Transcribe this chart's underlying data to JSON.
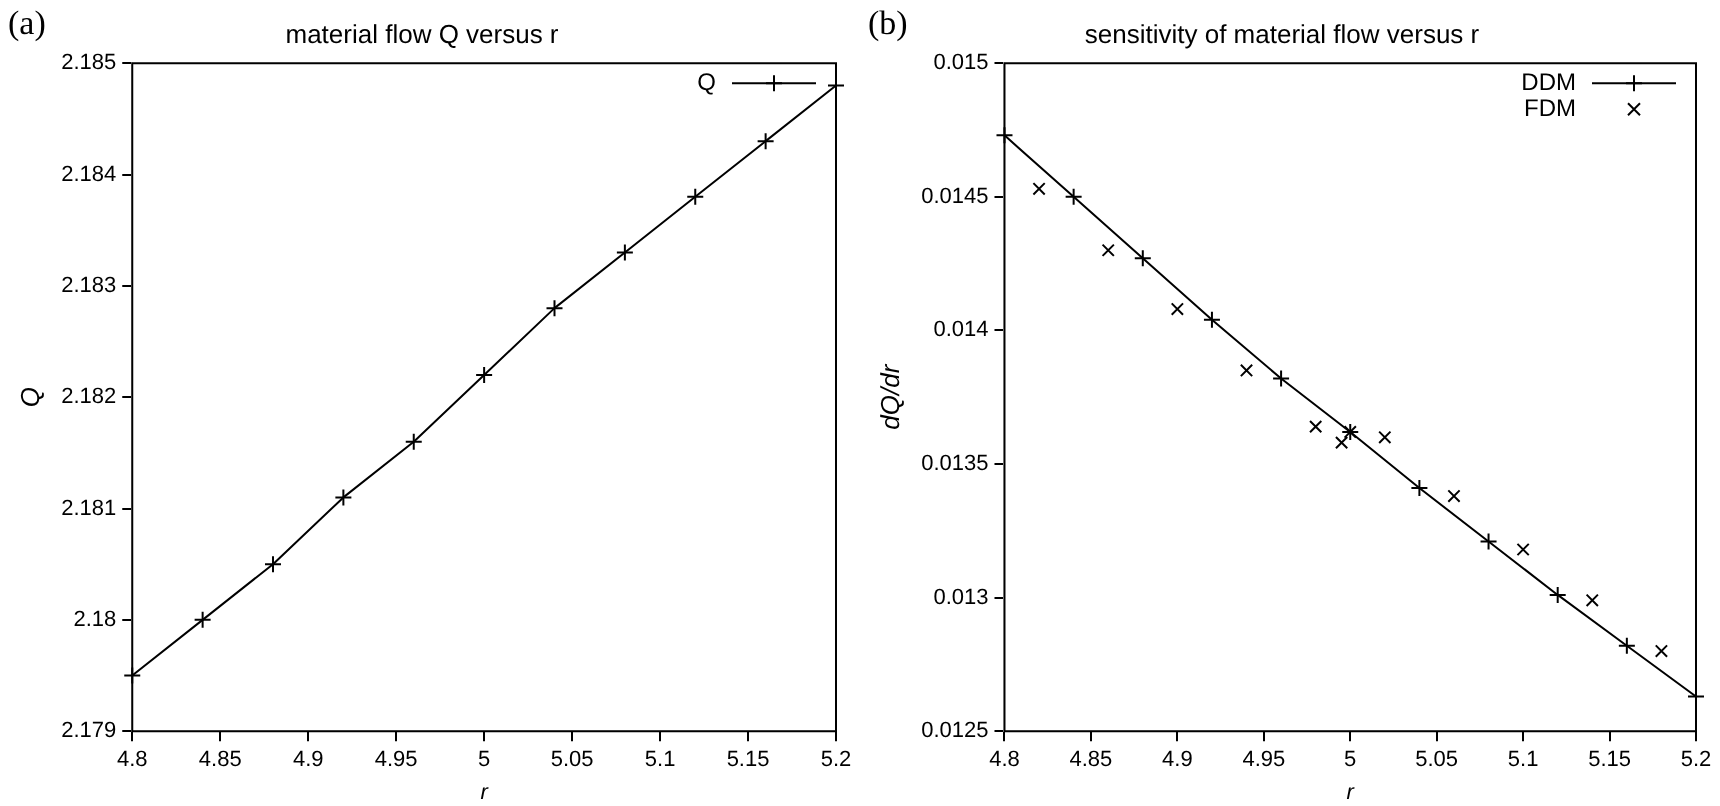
{
  "chart_data": [
    {
      "type": "line",
      "title": "material flow Q versus r",
      "xlabel": "r",
      "ylabel": "Q",
      "annotations": [
        "(a)"
      ],
      "x": [
        4.8,
        4.84,
        4.88,
        4.92,
        4.96,
        5.0,
        5.04,
        5.08,
        5.12,
        5.16,
        5.2
      ],
      "series": [
        {
          "name": "Q",
          "color": "#000000",
          "marker": "cross",
          "values": [
            2.1795,
            2.18,
            2.1805,
            2.1811,
            2.1816,
            2.1822,
            2.1828,
            2.1833,
            2.1838,
            2.1843,
            2.1848
          ]
        }
      ],
      "xlim": [
        4.8,
        5.2
      ],
      "xticks": [
        4.8,
        4.85,
        4.9,
        4.95,
        5,
        5.05,
        5.1,
        5.15,
        5.2
      ],
      "ylim": [
        2.179,
        2.185
      ],
      "yticks": [
        2.179,
        2.18,
        2.181,
        2.182,
        2.183,
        2.184,
        2.185
      ],
      "grid": false,
      "legend": "top right"
    },
    {
      "type": "line",
      "title": "sensitivity of material flow versus r",
      "xlabel": "r",
      "ylabel": "dQ/dr",
      "annotations": [
        "(b)"
      ],
      "series": [
        {
          "name": "DDM",
          "type": "line",
          "color": "#000000",
          "marker": "cross",
          "x": [
            4.8,
            4.84,
            4.88,
            4.92,
            4.96,
            5.0,
            5.04,
            5.08,
            5.12,
            5.16,
            5.2
          ],
          "values": [
            0.01473,
            0.0145,
            0.01427,
            0.01404,
            0.01382,
            0.01362,
            0.01341,
            0.01321,
            0.01301,
            0.01282,
            0.01263
          ]
        },
        {
          "name": "FDM",
          "type": "scatter",
          "color": "#000000",
          "marker": "cross",
          "x": [
            4.82,
            4.86,
            4.9,
            4.94,
            4.98,
            4.995,
            5.0,
            5.02,
            5.06,
            5.1,
            5.14,
            5.18
          ],
          "values": [
            0.01453,
            0.0143,
            0.01408,
            0.01385,
            0.01364,
            0.01358,
            0.01362,
            0.0136,
            0.01338,
            0.01318,
            0.01299,
            0.0128
          ]
        }
      ],
      "xlim": [
        4.8,
        5.2
      ],
      "xticks": [
        4.8,
        4.85,
        4.9,
        4.95,
        5,
        5.05,
        5.1,
        5.15,
        5.2
      ],
      "ylim": [
        0.0125,
        0.015
      ],
      "yticks": [
        0.0125,
        0.013,
        0.0135,
        0.014,
        0.0145,
        0.015
      ],
      "grid": false,
      "legend": "top right"
    }
  ]
}
